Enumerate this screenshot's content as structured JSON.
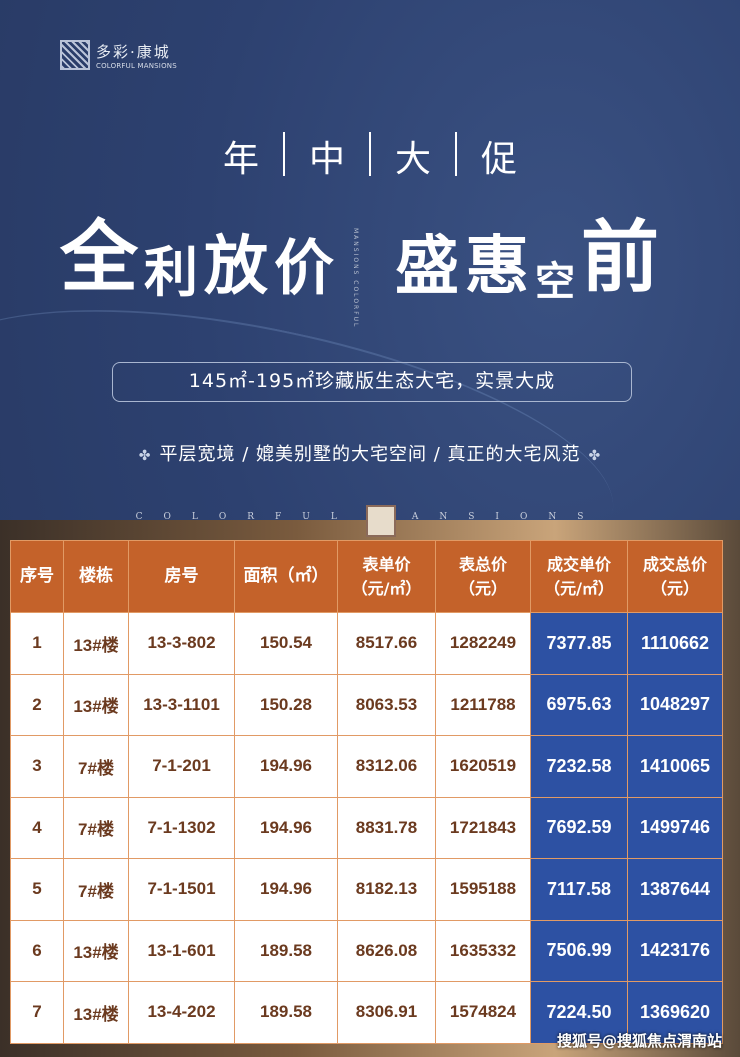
{
  "brand": {
    "name_cn": "多彩·康城",
    "name_en": "COLORFUL MANSIONS"
  },
  "headline": [
    "年",
    "中",
    "大",
    "促"
  ],
  "slogan_left": [
    "全",
    "利",
    "放",
    "价"
  ],
  "slogan_right": [
    "盛",
    "惠",
    "空",
    "前"
  ],
  "vertical_text": "MANSIONS COLORFUL",
  "subtitle": "145㎡-195㎡珍藏版生态大宅，实景大成",
  "tagline": "平层宽境 / 媲美别墅的大宅空间 / 真正的大宅风范",
  "band_text": "COLORFUL MANSIONS",
  "colors": {
    "background": "#2c3f6b",
    "header": "#c4622a",
    "highlight": "#2d51a3",
    "cell_text": "#6b3a1f"
  },
  "table": {
    "headers": [
      "序号",
      "楼栋",
      "房号",
      "面积（㎡）",
      "表单价（元/㎡）",
      "表总价（元）",
      "成交单价（元/㎡）",
      "成交总价（元）"
    ],
    "rows": [
      [
        "1",
        "13#楼",
        "13-3-802",
        "150.54",
        "8517.66",
        "1282249",
        "7377.85",
        "1110662"
      ],
      [
        "2",
        "13#楼",
        "13-3-1101",
        "150.28",
        "8063.53",
        "1211788",
        "6975.63",
        "1048297"
      ],
      [
        "3",
        "7#楼",
        "7-1-201",
        "194.96",
        "8312.06",
        "1620519",
        "7232.58",
        "1410065"
      ],
      [
        "4",
        "7#楼",
        "7-1-1302",
        "194.96",
        "8831.78",
        "1721843",
        "7692.59",
        "1499746"
      ],
      [
        "5",
        "7#楼",
        "7-1-1501",
        "194.96",
        "8182.13",
        "1595188",
        "7117.58",
        "1387644"
      ],
      [
        "6",
        "13#楼",
        "13-1-601",
        "189.58",
        "8626.08",
        "1635332",
        "7506.99",
        "1423176"
      ],
      [
        "7",
        "13#楼",
        "13-4-202",
        "189.58",
        "8306.91",
        "1574824",
        "7224.50",
        "1369620"
      ]
    ]
  },
  "watermark": "搜狐号@搜狐焦点渭南站"
}
